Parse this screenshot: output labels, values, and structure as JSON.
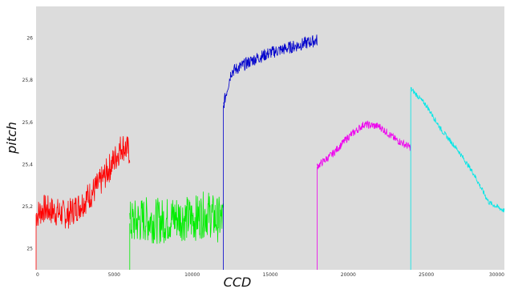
{
  "chart_data": {
    "type": "line",
    "title": "",
    "xlabel": "CCD",
    "ylabel": "pitch",
    "xlim": [
      0,
      30000
    ],
    "ylim": [
      24.9,
      26.15
    ],
    "x_ticks": [
      0,
      5000,
      10000,
      15000,
      20000,
      25000,
      30000
    ],
    "y_ticks": [
      25,
      25.2,
      25.4,
      25.6,
      25.8,
      26
    ],
    "y_tick_labels": [
      "25",
      "25,2",
      "25,4",
      "25,6",
      "25,8",
      "26"
    ],
    "grid": false,
    "legend": "none",
    "plot_background": "#dcdcdc",
    "series": [
      {
        "color": "#ff0000",
        "x": [
          0,
          500,
          1000,
          2000,
          3000,
          4000,
          5000,
          5500,
          6000
        ],
        "y": [
          25.16,
          25.19,
          25.18,
          25.16,
          25.22,
          25.3,
          25.42,
          25.49,
          25.46
        ]
      },
      {
        "color": "#00ee00",
        "x": [
          6000,
          7000,
          8000,
          9000,
          10000,
          11000,
          11500,
          12000
        ],
        "y": [
          25.12,
          25.14,
          25.13,
          25.15,
          25.14,
          25.17,
          25.14,
          25.14
        ]
      },
      {
        "color": "#0000cc",
        "x": [
          12000,
          12500,
          13000,
          14000,
          15000,
          16000,
          17000,
          18000
        ],
        "y": [
          25.68,
          25.84,
          25.86,
          25.9,
          25.93,
          25.95,
          25.97,
          25.99
        ]
      },
      {
        "color": "#ee00ee",
        "x": [
          18000,
          19000,
          20000,
          21000,
          22000,
          23000,
          24000
        ],
        "y": [
          25.39,
          25.45,
          25.53,
          25.59,
          25.58,
          25.52,
          25.48
        ]
      },
      {
        "color": "#00e6e6",
        "x": [
          24000,
          25000,
          26000,
          27000,
          28000,
          29000,
          30000
        ],
        "y": [
          25.76,
          25.68,
          25.56,
          25.47,
          25.36,
          25.22,
          25.18
        ]
      }
    ]
  }
}
